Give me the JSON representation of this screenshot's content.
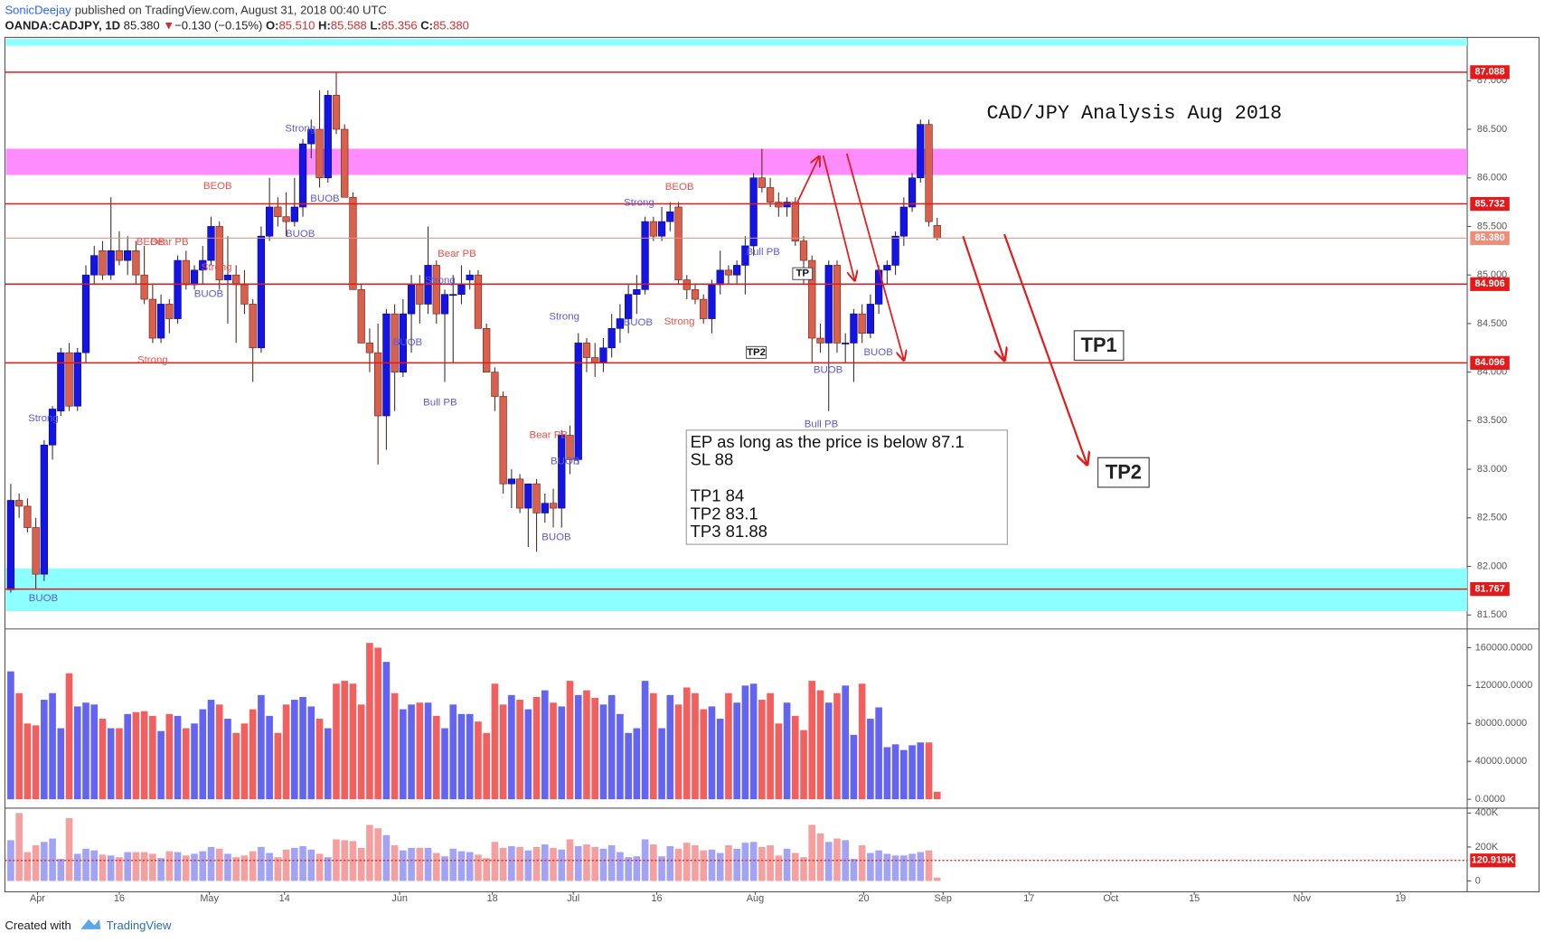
{
  "header": {
    "author": "SonicDeejay",
    "published": "published on TradingView.com, August 31, 2018 00:40 UTC"
  },
  "legend": {
    "symbol": "OANDA:CADJPY, 1D",
    "last": "85.380",
    "arrow": "▼",
    "change": "−0.130 (−0.15%)",
    "open_label": "O:",
    "open": "85.510",
    "high_label": "H:",
    "high": "85.588",
    "low_label": "L:",
    "low": "85.356",
    "close_label": "C:",
    "close": "85.380"
  },
  "chart_data": [
    {
      "type": "candlestick",
      "title": "CAD/JPY Analysis Aug 2018",
      "up_color": "#1414e6",
      "down_color": "#d9604c",
      "open": [
        81.76,
        82.68,
        82.62,
        82.4,
        81.92,
        83.25,
        83.6,
        84.2,
        83.65,
        84.2,
        85.0,
        85.25,
        85.0,
        85.25,
        85.15,
        85.25,
        85.0,
        84.75,
        84.35,
        84.7,
        84.55,
        85.15,
        84.9,
        85.05,
        85.15,
        85.5,
        84.95,
        85.0,
        84.9,
        84.7,
        84.25,
        85.4,
        85.7,
        85.6,
        85.55,
        85.7,
        86.35,
        86.5,
        86.0,
        86.85,
        86.5,
        85.8,
        84.85,
        84.3,
        84.2,
        83.55,
        84.6,
        84.0,
        84.6,
        84.9,
        84.7,
        85.1,
        84.6,
        84.8,
        84.8,
        84.95,
        85.0,
        84.45,
        84.0,
        83.75,
        82.85,
        82.9,
        82.6,
        82.85,
        82.55,
        82.65,
        82.6,
        83.35,
        83.1,
        84.3,
        84.15,
        84.1,
        84.25,
        84.45,
        84.55,
        84.8,
        84.85,
        85.55,
        85.4,
        85.55,
        85.7,
        84.95,
        84.85,
        84.75,
        84.55,
        84.9,
        85.05,
        85.0,
        85.1,
        85.3,
        86.0,
        85.9,
        85.75,
        85.7,
        85.75,
        85.35,
        85.15,
        84.35,
        84.3,
        85.1,
        84.3,
        84.3,
        84.6,
        84.4,
        84.7,
        85.05,
        85.1,
        85.4,
        85.7,
        86.0,
        86.55,
        85.51
      ],
      "high": [
        82.85,
        82.75,
        82.7,
        82.5,
        83.3,
        83.65,
        84.25,
        84.3,
        84.25,
        85.1,
        85.3,
        85.35,
        85.8,
        85.45,
        85.4,
        85.35,
        85.3,
        84.9,
        84.8,
        84.75,
        85.2,
        85.25,
        85.1,
        85.3,
        85.6,
        85.55,
        85.4,
        85.1,
        85.05,
        84.75,
        85.5,
        86.0,
        85.8,
        85.85,
        86.0,
        86.4,
        86.6,
        86.9,
        86.9,
        87.09,
        86.55,
        85.85,
        84.9,
        84.45,
        84.5,
        84.65,
        84.7,
        84.75,
        85.0,
        85.0,
        85.5,
        85.15,
        84.85,
        85.0,
        85.1,
        85.05,
        85.05,
        84.5,
        84.05,
        83.8,
        83.0,
        82.95,
        82.85,
        82.9,
        82.75,
        82.8,
        83.4,
        83.45,
        84.4,
        84.35,
        84.3,
        84.35,
        84.6,
        84.7,
        84.9,
        85.0,
        85.6,
        85.6,
        85.7,
        85.75,
        85.75,
        85.0,
        84.9,
        84.8,
        84.95,
        85.25,
        85.1,
        85.15,
        85.4,
        86.05,
        86.3,
        86.0,
        85.85,
        85.8,
        85.8,
        85.4,
        85.2,
        84.5,
        85.15,
        85.15,
        84.4,
        84.65,
        84.7,
        84.8,
        85.1,
        85.15,
        85.45,
        85.8,
        86.05,
        86.6,
        86.6,
        85.588
      ],
      "low": [
        81.73,
        82.5,
        82.35,
        81.77,
        81.85,
        83.1,
        83.55,
        83.6,
        83.6,
        84.1,
        84.9,
        84.95,
        84.95,
        85.1,
        85.0,
        84.9,
        84.7,
        84.3,
        84.3,
        84.4,
        84.5,
        84.85,
        84.85,
        84.9,
        85.1,
        84.85,
        84.5,
        84.3,
        84.6,
        83.9,
        84.2,
        85.35,
        85.5,
        85.4,
        85.5,
        85.6,
        86.2,
        85.9,
        85.95,
        86.45,
        85.8,
        84.85,
        84.3,
        84.0,
        83.05,
        83.2,
        83.6,
        83.95,
        84.2,
        84.5,
        84.6,
        84.5,
        83.9,
        84.1,
        84.7,
        84.85,
        84.45,
        84.0,
        83.6,
        82.75,
        82.6,
        82.55,
        82.2,
        82.15,
        82.45,
        82.4,
        82.4,
        82.95,
        83.05,
        84.0,
        83.95,
        84.0,
        84.15,
        84.3,
        84.4,
        84.6,
        84.8,
        85.35,
        85.35,
        85.45,
        84.9,
        84.75,
        84.7,
        84.5,
        84.4,
        84.8,
        84.9,
        84.9,
        84.8,
        85.2,
        85.85,
        85.7,
        85.6,
        85.6,
        85.3,
        84.9,
        84.1,
        84.2,
        83.6,
        84.2,
        84.1,
        83.9,
        84.3,
        84.35,
        84.6,
        84.9,
        85.0,
        85.3,
        85.65,
        85.95,
        85.5,
        85.356
      ],
      "close": [
        82.68,
        82.62,
        82.4,
        81.92,
        83.25,
        83.62,
        84.2,
        83.65,
        84.2,
        85.0,
        85.2,
        85.0,
        85.25,
        85.15,
        85.25,
        85.0,
        84.75,
        84.35,
        84.7,
        84.55,
        85.15,
        84.9,
        85.05,
        85.15,
        85.5,
        84.95,
        85.0,
        84.9,
        84.7,
        84.25,
        85.4,
        85.7,
        85.6,
        85.55,
        85.7,
        86.35,
        86.5,
        86.0,
        86.85,
        86.5,
        85.8,
        84.85,
        84.3,
        84.2,
        83.55,
        84.6,
        84.0,
        84.6,
        84.9,
        84.7,
        85.1,
        84.6,
        84.8,
        84.8,
        84.9,
        85.0,
        84.45,
        84.0,
        83.75,
        82.85,
        82.9,
        82.6,
        82.85,
        82.55,
        82.65,
        82.6,
        83.35,
        83.1,
        84.3,
        84.15,
        84.1,
        84.25,
        84.45,
        84.55,
        84.8,
        84.85,
        85.55,
        85.4,
        85.55,
        85.65,
        84.95,
        84.85,
        84.75,
        84.55,
        84.9,
        85.05,
        85.0,
        85.1,
        85.3,
        86.0,
        85.9,
        85.75,
        85.7,
        85.75,
        85.35,
        85.15,
        84.35,
        84.3,
        85.1,
        84.3,
        84.3,
        84.6,
        84.4,
        84.7,
        85.05,
        85.1,
        85.4,
        85.7,
        86.0,
        86.55,
        85.55,
        85.38
      ],
      "xlim": [
        -0.7,
        174.5
      ],
      "ylim": [
        81.366,
        87.446
      ],
      "xticks": [
        {
          "value": 3.2,
          "label": "Apr"
        },
        {
          "value": 13.0,
          "label": "16"
        },
        {
          "value": 23.8,
          "label": "May"
        },
        {
          "value": 32.8,
          "label": "14"
        },
        {
          "value": 46.6,
          "label": "Jun"
        },
        {
          "value": 57.7,
          "label": "18"
        },
        {
          "value": 67.4,
          "label": "Jul"
        },
        {
          "value": 77.4,
          "label": "16"
        },
        {
          "value": 89.2,
          "label": "Aug"
        },
        {
          "value": 102.2,
          "label": "20"
        },
        {
          "value": 111.7,
          "label": "Sep"
        },
        {
          "value": 122.0,
          "label": "17"
        },
        {
          "value": 131.8,
          "label": "Oct"
        },
        {
          "value": 141.8,
          "label": "15"
        },
        {
          "value": 154.7,
          "label": "Nov"
        },
        {
          "value": 166.5,
          "label": "19"
        }
      ],
      "yticks": [
        {
          "value": 87,
          "label": "87.000"
        },
        {
          "value": 86.5,
          "label": "86.500"
        },
        {
          "value": 86,
          "label": "86.000"
        },
        {
          "value": 85.5,
          "label": "85.500"
        },
        {
          "value": 85,
          "label": "85.000"
        },
        {
          "value": 84.5,
          "label": "84.500"
        },
        {
          "value": 84,
          "label": "84.000"
        },
        {
          "value": 83.5,
          "label": "83.500"
        },
        {
          "value": 83,
          "label": "83.000"
        },
        {
          "value": 82.5,
          "label": "82.500"
        },
        {
          "value": 82,
          "label": "82.000"
        },
        {
          "value": 81.5,
          "label": "81.500"
        }
      ],
      "levels": [
        87.088,
        85.732,
        {
          "value": 85.38,
          "label": "85.380"
        },
        84.906,
        84.096,
        81.767
      ],
      "level_color": "#e41a1a",
      "current_color": "#ec8e7c",
      "zones": [
        {
          "range": [
            87.36,
            87.43
          ],
          "color": "#80ffff"
        },
        {
          "range": [
            86.03,
            86.3
          ],
          "color": "#ff80ff"
        },
        {
          "range": [
            81.54,
            81.98
          ],
          "color": "#80ffff"
        }
      ],
      "note": [
        "EP as long as the price is below 87.1",
        "SL 88",
        "TP1 84",
        "TP2 83.1",
        "TP3 81.88"
      ],
      "targets": [
        "TP1",
        "TP2"
      ],
      "signals": [
        {
          "text": "Strong",
          "color": "#5b5bd6"
        },
        {
          "text": "BUOB",
          "color": "#5b5bd6"
        },
        {
          "text": "BEOB",
          "color": "#e5534b"
        },
        {
          "text": "Bear PB",
          "color": "#e5534b"
        },
        {
          "text": "Strong",
          "color": "#e5534b"
        },
        {
          "text": "Strong",
          "color": "#e5534b"
        },
        {
          "text": "BUOB",
          "color": "#5b5bd6"
        },
        {
          "text": "BEOB",
          "color": "#e5534b"
        },
        {
          "text": "Strong",
          "color": "#5b5bd6"
        },
        {
          "text": "BUOB",
          "color": "#5b5bd6"
        },
        {
          "text": "BUOB",
          "color": "#5b5bd6"
        },
        {
          "text": "BUOB",
          "color": "#5b5bd6"
        },
        {
          "text": "Bear PB",
          "color": "#e5534b"
        },
        {
          "text": "Strong",
          "color": "#5b5bd6"
        },
        {
          "text": "Bull PB",
          "color": "#5b5bd6"
        },
        {
          "text": "Strong",
          "color": "#5b5bd6"
        },
        {
          "text": "Bear PB",
          "color": "#e5534b"
        },
        {
          "text": "BUOB",
          "color": "#5b5bd6"
        },
        {
          "text": "BUOB",
          "color": "#5b5bd6"
        },
        {
          "text": "Strong",
          "color": "#5b5bd6"
        },
        {
          "text": "BEOB",
          "color": "#e5534b"
        },
        {
          "text": "BUOB",
          "color": "#5b5bd6"
        },
        {
          "text": "Strong",
          "color": "#e5534b"
        },
        {
          "text": "Bull PB",
          "color": "#5b5bd6"
        },
        {
          "text": "BUOB",
          "color": "#5b5bd6"
        },
        {
          "text": "Bull PB",
          "color": "#5b5bd6"
        },
        {
          "text": "BUOB",
          "color": "#5b5bd6"
        },
        {
          "text": "TP",
          "color": "#111111",
          "boxed": true
        },
        {
          "text": "TP2",
          "color": "#111111",
          "boxed": true
        }
      ]
    },
    {
      "type": "bar",
      "up_color": "#6464f2",
      "down_color": "#f25f5f",
      "values": [
        135000,
        112000,
        80000,
        78000,
        105000,
        112000,
        75000,
        133000,
        98000,
        102000,
        100000,
        85000,
        75000,
        75000,
        90000,
        92000,
        93000,
        88000,
        72000,
        90000,
        88000,
        75000,
        80000,
        95000,
        105000,
        100000,
        85000,
        70000,
        80000,
        95000,
        110000,
        88000,
        70000,
        100000,
        105000,
        108000,
        98000,
        85000,
        75000,
        122000,
        125000,
        122000,
        100000,
        165000,
        160000,
        145000,
        112000,
        95000,
        100000,
        102000,
        102000,
        88000,
        75000,
        100000,
        90000,
        90000,
        82000,
        70000,
        122000,
        100000,
        110000,
        105000,
        95000,
        108000,
        115000,
        102000,
        98000,
        125000,
        110000,
        115000,
        107000,
        100000,
        110000,
        90000,
        70000,
        75000,
        125000,
        112000,
        75000,
        110000,
        100000,
        118000,
        112000,
        95000,
        98000,
        85000,
        112000,
        102000,
        120000,
        122000,
        105000,
        112000,
        80000,
        102000,
        88000,
        73000,
        125000,
        115000,
        102000,
        112000,
        120000,
        68000,
        122000,
        85000,
        97000,
        55000,
        58000,
        52000,
        57000,
        60000,
        60000,
        8000
      ],
      "ylim": [
        -8300,
        178700
      ],
      "yticks": [
        {
          "value": 160000,
          "label": "160000.0000"
        },
        {
          "value": 120000,
          "label": "120000.0000"
        },
        {
          "value": 80000,
          "label": "80000.0000"
        },
        {
          "value": 40000,
          "label": "40000.0000"
        },
        {
          "value": 0,
          "label": "0.0000"
        }
      ]
    },
    {
      "type": "bar",
      "up_color": "#a3a3f5",
      "down_color": "#f5a0a0",
      "values": [
        240,
        400,
        170,
        210,
        230,
        250,
        130,
        370,
        160,
        190,
        180,
        155,
        150,
        140,
        170,
        170,
        170,
        160,
        135,
        175,
        170,
        150,
        160,
        175,
        200,
        190,
        160,
        140,
        150,
        175,
        200,
        165,
        140,
        185,
        195,
        205,
        185,
        160,
        140,
        245,
        240,
        235,
        195,
        330,
        310,
        270,
        210,
        180,
        195,
        195,
        195,
        165,
        145,
        190,
        175,
        170,
        155,
        135,
        230,
        195,
        205,
        200,
        180,
        200,
        215,
        195,
        185,
        245,
        205,
        215,
        200,
        190,
        210,
        170,
        140,
        145,
        245,
        215,
        145,
        205,
        190,
        225,
        210,
        180,
        185,
        165,
        210,
        190,
        225,
        230,
        200,
        210,
        150,
        190,
        165,
        140,
        330,
        280,
        230,
        250,
        240,
        130,
        210,
        165,
        180,
        160,
        150,
        150,
        160,
        170,
        180,
        20
      ],
      "ylim": [
        -58,
        423
      ],
      "yticks": [
        {
          "value": 400,
          "label": "400K"
        },
        {
          "value": 200,
          "label": "200K"
        },
        0
      ],
      "ma": {
        "value": 120.919,
        "label": "120.919K"
      },
      "ma_color": "#e41a1a"
    }
  ],
  "footer": {
    "created": "Created with",
    "brand": "TradingView"
  }
}
